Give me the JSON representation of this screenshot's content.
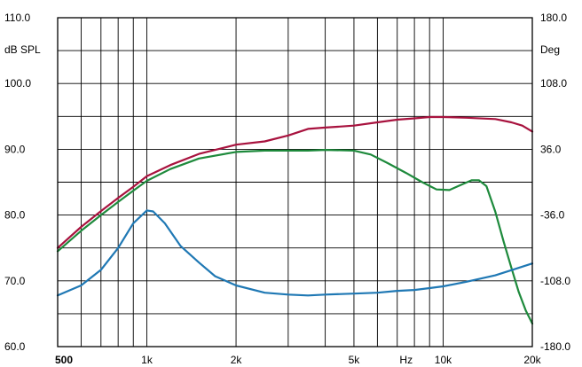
{
  "chart_data": {
    "type": "line",
    "title": "",
    "xlabel": "Hz",
    "ylabel_left": "dB SPL",
    "ylabel_right": "Deg",
    "x_scale": "log",
    "xlim": [
      500,
      20000
    ],
    "ylim_left": [
      60,
      110
    ],
    "ylim_right": [
      -180,
      180
    ],
    "grid": true,
    "x_tick_labels": [
      {
        "value": 500,
        "label": "500"
      },
      {
        "value": 1000,
        "label": "1k"
      },
      {
        "value": 2000,
        "label": "2k"
      },
      {
        "value": 5000,
        "label": "5k"
      },
      {
        "value": 7500,
        "label": "Hz"
      },
      {
        "value": 10000,
        "label": "10k"
      },
      {
        "value": 20000,
        "label": "20k"
      }
    ],
    "x_grid_values": [
      500,
      600,
      700,
      800,
      900,
      1000,
      2000,
      3000,
      4000,
      5000,
      6000,
      7000,
      8000,
      9000,
      10000,
      20000
    ],
    "y_left_tick_labels": [
      {
        "value": 110,
        "label": "110.0"
      },
      {
        "value": 100,
        "label": "100.0"
      },
      {
        "value": 90,
        "label": "90.0"
      },
      {
        "value": 80,
        "label": "80.0"
      },
      {
        "value": 70,
        "label": "70.0"
      },
      {
        "value": 60,
        "label": "60.0"
      }
    ],
    "y_right_tick_labels": [
      {
        "value": 180,
        "label": "180.0"
      },
      {
        "value": 108,
        "label": "108.0"
      },
      {
        "value": 36,
        "label": "36.0"
      },
      {
        "value": -36,
        "label": "-36.0"
      },
      {
        "value": -108,
        "label": "-108.0"
      },
      {
        "value": -180,
        "label": "-180.0"
      }
    ],
    "y_grid_values": [
      60,
      65,
      70,
      75,
      80,
      85,
      90,
      95,
      100,
      105,
      110
    ],
    "series": [
      {
        "color": "#a8123e",
        "axis": "left",
        "points": [
          [
            500,
            75.0
          ],
          [
            600,
            78.2
          ],
          [
            700,
            80.6
          ],
          [
            800,
            82.6
          ],
          [
            900,
            84.3
          ],
          [
            1000,
            85.9
          ],
          [
            1200,
            87.6
          ],
          [
            1500,
            89.3
          ],
          [
            2000,
            90.7
          ],
          [
            2500,
            91.2
          ],
          [
            3000,
            92.1
          ],
          [
            3500,
            93.1
          ],
          [
            4000,
            93.3
          ],
          [
            5000,
            93.6
          ],
          [
            6000,
            94.1
          ],
          [
            7000,
            94.5
          ],
          [
            8000,
            94.7
          ],
          [
            9000,
            94.9
          ],
          [
            10000,
            94.9
          ],
          [
            12000,
            94.8
          ],
          [
            15000,
            94.6
          ],
          [
            17000,
            94.1
          ],
          [
            18500,
            93.6
          ],
          [
            20000,
            92.7
          ]
        ]
      },
      {
        "color": "#1e8a3c",
        "axis": "left",
        "points": [
          [
            500,
            74.5
          ],
          [
            600,
            77.6
          ],
          [
            700,
            80.0
          ],
          [
            800,
            82.0
          ],
          [
            900,
            83.7
          ],
          [
            1000,
            85.2
          ],
          [
            1200,
            87.0
          ],
          [
            1500,
            88.6
          ],
          [
            2000,
            89.6
          ],
          [
            2500,
            89.8
          ],
          [
            3000,
            89.8
          ],
          [
            3500,
            89.8
          ],
          [
            4000,
            89.9
          ],
          [
            5000,
            89.8
          ],
          [
            5700,
            89.2
          ],
          [
            6500,
            87.9
          ],
          [
            7500,
            86.4
          ],
          [
            8500,
            85.0
          ],
          [
            9500,
            83.9
          ],
          [
            10500,
            83.8
          ],
          [
            11500,
            84.6
          ],
          [
            12500,
            85.3
          ],
          [
            13200,
            85.3
          ],
          [
            14000,
            84.4
          ],
          [
            15000,
            80.5
          ],
          [
            16000,
            76.0
          ],
          [
            17000,
            72.0
          ],
          [
            18000,
            68.3
          ],
          [
            19000,
            65.5
          ],
          [
            20000,
            63.5
          ]
        ]
      },
      {
        "color": "#1f78b4",
        "axis": "right",
        "points": [
          [
            500,
            -124
          ],
          [
            600,
            -113
          ],
          [
            700,
            -96
          ],
          [
            800,
            -72
          ],
          [
            900,
            -45
          ],
          [
            1000,
            -31
          ],
          [
            1050,
            -32
          ],
          [
            1150,
            -45
          ],
          [
            1300,
            -70
          ],
          [
            1500,
            -88
          ],
          [
            1700,
            -103
          ],
          [
            2000,
            -113
          ],
          [
            2500,
            -121
          ],
          [
            3000,
            -123
          ],
          [
            3500,
            -124
          ],
          [
            4000,
            -123
          ],
          [
            5000,
            -122
          ],
          [
            6000,
            -121
          ],
          [
            7000,
            -119
          ],
          [
            8000,
            -118
          ],
          [
            9000,
            -116
          ],
          [
            10000,
            -114
          ],
          [
            12000,
            -109
          ],
          [
            15000,
            -102
          ],
          [
            17500,
            -95
          ],
          [
            20000,
            -89
          ]
        ]
      }
    ]
  }
}
